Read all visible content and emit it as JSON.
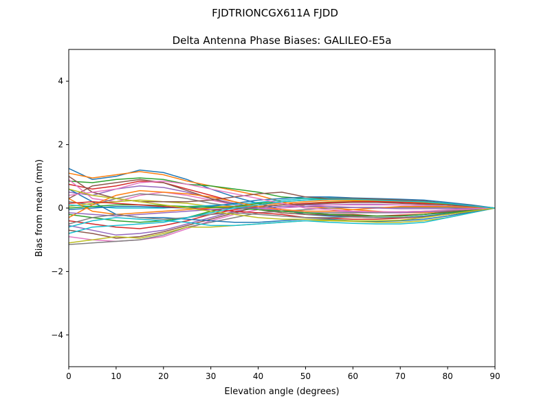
{
  "chart_data": {
    "type": "line",
    "suptitle": "FJDTRIONCGX611A FJDD",
    "title": "Delta Antenna Phase Biases: GALILEO-E5a",
    "xlabel": "Elevation angle (degrees)",
    "ylabel": "Bias from mean (mm)",
    "xlim": [
      0,
      90
    ],
    "ylim": [
      -5,
      5
    ],
    "xticks": [
      0,
      10,
      20,
      30,
      40,
      50,
      60,
      70,
      80,
      90
    ],
    "yticks": [
      -4,
      -2,
      0,
      2,
      4
    ],
    "ytick_labels": [
      "−4",
      "−2",
      "0",
      "2",
      "4"
    ],
    "grid": false,
    "legend": "none",
    "colors": [
      "#1f77b4",
      "#ff7f0e",
      "#2ca02c",
      "#d62728",
      "#9467bd",
      "#8c564b",
      "#e377c2",
      "#7f7f7f",
      "#bcbd22",
      "#17becf"
    ],
    "x": [
      0,
      5,
      10,
      15,
      20,
      25,
      30,
      35,
      40,
      45,
      50,
      55,
      60,
      65,
      70,
      75,
      80,
      85,
      90
    ],
    "series": [
      {
        "values": [
          1.25,
          0.9,
          1.0,
          1.2,
          1.12,
          0.9,
          0.6,
          0.35,
          0.15,
          -0.05,
          -0.2,
          -0.25,
          -0.28,
          -0.3,
          -0.3,
          -0.25,
          -0.18,
          -0.08,
          0
        ]
      },
      {
        "values": [
          1.1,
          0.95,
          1.05,
          1.15,
          1.05,
          0.85,
          0.7,
          0.55,
          0.4,
          0.2,
          0.05,
          0,
          -0.05,
          -0.1,
          -0.15,
          -0.15,
          -0.1,
          -0.05,
          0
        ]
      },
      {
        "values": [
          0.85,
          0.8,
          0.9,
          0.95,
          0.9,
          0.75,
          0.7,
          0.6,
          0.5,
          0.35,
          0.3,
          0.3,
          0.28,
          0.25,
          0.22,
          0.18,
          0.12,
          0.06,
          0
        ]
      },
      {
        "values": [
          0.75,
          0.6,
          0.7,
          0.85,
          0.8,
          0.6,
          0.4,
          0.2,
          0.05,
          -0.1,
          -0.15,
          -0.2,
          -0.2,
          -0.25,
          -0.22,
          -0.2,
          -0.12,
          -0.06,
          0
        ]
      },
      {
        "values": [
          0.5,
          0.4,
          0.6,
          0.7,
          0.65,
          0.5,
          0.3,
          0.15,
          0,
          -0.1,
          -0.1,
          -0.1,
          -0.12,
          -0.15,
          -0.15,
          -0.12,
          -0.1,
          -0.05,
          0
        ]
      },
      {
        "values": [
          0.3,
          0.7,
          0.8,
          0.9,
          0.8,
          0.55,
          0.3,
          0.1,
          -0.05,
          -0.15,
          -0.2,
          -0.22,
          -0.25,
          -0.25,
          -0.25,
          -0.2,
          -0.12,
          -0.06,
          0
        ]
      },
      {
        "values": [
          0.9,
          0.3,
          0.2,
          0.4,
          0.5,
          0.4,
          0.25,
          0.1,
          0,
          -0.05,
          -0.1,
          -0.1,
          -0.1,
          -0.12,
          -0.12,
          -0.1,
          -0.08,
          -0.04,
          0
        ]
      },
      {
        "values": [
          0.2,
          0.1,
          0.3,
          0.45,
          0.4,
          0.3,
          0.15,
          0.05,
          -0.05,
          -0.1,
          -0.15,
          -0.15,
          -0.15,
          -0.15,
          -0.12,
          -0.1,
          -0.08,
          -0.04,
          0
        ]
      },
      {
        "values": [
          0.05,
          0.15,
          0.2,
          0.25,
          0.2,
          0.15,
          0.05,
          0.05,
          0.05,
          0.1,
          0.15,
          0.2,
          0.22,
          0.22,
          0.2,
          0.18,
          0.12,
          0.06,
          0
        ]
      },
      {
        "values": [
          0.1,
          0.05,
          0,
          0,
          0,
          0.05,
          0.08,
          0.12,
          0.18,
          0.25,
          0.3,
          0.32,
          0.3,
          0.28,
          0.25,
          0.2,
          0.15,
          0.08,
          0
        ]
      },
      {
        "values": [
          -0.05,
          0,
          0.05,
          0.05,
          0.02,
          0,
          0.05,
          0.15,
          0.25,
          0.3,
          0.35,
          0.35,
          0.32,
          0.3,
          0.28,
          0.25,
          0.18,
          0.1,
          0
        ]
      },
      {
        "values": [
          0.3,
          -0.1,
          -0.2,
          -0.15,
          -0.1,
          -0.05,
          0,
          0.05,
          0.1,
          0.15,
          0.2,
          0.25,
          0.25,
          0.22,
          0.2,
          0.15,
          0.1,
          0.05,
          0
        ]
      },
      {
        "values": [
          -0.2,
          -0.3,
          -0.4,
          -0.45,
          -0.4,
          -0.3,
          -0.1,
          0.05,
          0.15,
          0.2,
          0.25,
          0.3,
          0.3,
          0.28,
          0.25,
          0.2,
          0.14,
          0.07,
          0
        ]
      },
      {
        "values": [
          -0.4,
          -0.5,
          -0.6,
          -0.65,
          -0.55,
          -0.4,
          -0.2,
          -0.05,
          0.05,
          0.1,
          0.15,
          0.18,
          0.2,
          0.2,
          0.18,
          0.15,
          0.1,
          0.05,
          0
        ]
      },
      {
        "values": [
          -0.55,
          -0.7,
          -0.85,
          -0.8,
          -0.7,
          -0.5,
          -0.3,
          -0.1,
          0,
          0.05,
          0.1,
          0.1,
          0.12,
          0.12,
          0.1,
          0.08,
          0.06,
          0.03,
          0
        ]
      },
      {
        "values": [
          -0.7,
          -0.8,
          -0.95,
          -0.9,
          -0.75,
          -0.55,
          -0.35,
          -0.15,
          0.05,
          0.1,
          0.12,
          0.15,
          0.18,
          0.18,
          0.15,
          0.12,
          0.1,
          0.05,
          0
        ]
      },
      {
        "values": [
          -0.9,
          -1.0,
          -1.05,
          -1.0,
          -0.9,
          -0.65,
          -0.4,
          -0.2,
          -0.05,
          0,
          0.05,
          0.1,
          0.1,
          0.1,
          0.1,
          0.08,
          0.05,
          0.02,
          0
        ]
      },
      {
        "values": [
          -1.15,
          -1.1,
          -1.05,
          -1.0,
          -0.85,
          -0.6,
          -0.45,
          -0.3,
          -0.15,
          -0.1,
          -0.05,
          0,
          0.02,
          0.02,
          0.02,
          0.02,
          0.02,
          0.01,
          0
        ]
      },
      {
        "values": [
          -1.1,
          -1.0,
          -0.9,
          -0.95,
          -0.8,
          -0.6,
          -0.6,
          -0.55,
          -0.5,
          -0.45,
          -0.4,
          -0.4,
          -0.42,
          -0.45,
          -0.45,
          -0.4,
          -0.3,
          -0.15,
          0
        ]
      },
      {
        "values": [
          -0.6,
          -0.4,
          -0.3,
          -0.35,
          -0.4,
          -0.45,
          -0.55,
          -0.55,
          -0.5,
          -0.45,
          -0.4,
          -0.45,
          -0.48,
          -0.5,
          -0.5,
          -0.45,
          -0.3,
          -0.15,
          0
        ]
      },
      {
        "values": [
          0.6,
          0.2,
          -0.2,
          -0.3,
          -0.3,
          -0.35,
          -0.4,
          -0.45,
          -0.45,
          -0.4,
          -0.35,
          -0.35,
          -0.4,
          -0.42,
          -0.4,
          -0.35,
          -0.25,
          -0.12,
          0
        ]
      },
      {
        "values": [
          -0.3,
          0.1,
          0.4,
          0.55,
          0.5,
          0.45,
          0.35,
          0.2,
          0.05,
          -0.05,
          -0.1,
          -0.1,
          -0.05,
          0,
          0.05,
          0.05,
          0.05,
          0.02,
          0
        ]
      },
      {
        "values": [
          0,
          0.05,
          0.1,
          0.1,
          0.08,
          0.05,
          0.02,
          0,
          -0.05,
          -0.1,
          -0.15,
          -0.2,
          -0.22,
          -0.25,
          -0.25,
          -0.2,
          -0.15,
          -0.08,
          0
        ]
      },
      {
        "values": [
          0.15,
          0.2,
          0.15,
          0.1,
          0.05,
          0,
          -0.05,
          -0.1,
          -0.15,
          -0.2,
          -0.3,
          -0.32,
          -0.35,
          -0.35,
          -0.32,
          -0.28,
          -0.2,
          -0.1,
          0
        ]
      },
      {
        "values": [
          -0.15,
          -0.2,
          -0.25,
          -0.2,
          -0.15,
          -0.1,
          -0.05,
          0,
          0,
          0.05,
          0.05,
          0.05,
          0.02,
          0,
          -0.02,
          -0.02,
          -0.02,
          -0.01,
          0
        ]
      },
      {
        "values": [
          1.0,
          0.5,
          0.3,
          0.2,
          0.2,
          0.2,
          0.25,
          0.35,
          0.45,
          0.5,
          0.35,
          0.3,
          0.3,
          0.28,
          0.25,
          0.22,
          0.15,
          0.08,
          0
        ]
      },
      {
        "values": [
          0.4,
          0.5,
          0.6,
          0.8,
          0.85,
          0.75,
          0.6,
          0.45,
          0.3,
          0.15,
          0,
          -0.05,
          -0.1,
          -0.12,
          -0.12,
          -0.1,
          -0.06,
          -0.03,
          0
        ]
      },
      {
        "values": [
          -0.5,
          -0.3,
          -0.2,
          -0.3,
          -0.35,
          -0.3,
          -0.2,
          -0.15,
          -0.2,
          -0.25,
          -0.3,
          -0.3,
          -0.28,
          -0.3,
          -0.3,
          -0.28,
          -0.2,
          -0.1,
          0
        ]
      },
      {
        "values": [
          0.6,
          0.4,
          0.3,
          0.2,
          0.1,
          0,
          -0.1,
          -0.2,
          -0.3,
          -0.35,
          -0.35,
          -0.38,
          -0.4,
          -0.4,
          -0.38,
          -0.3,
          -0.2,
          -0.1,
          0
        ]
      },
      {
        "values": [
          -0.8,
          -0.6,
          -0.55,
          -0.5,
          -0.45,
          -0.3,
          -0.15,
          0,
          0.1,
          0.2,
          0.25,
          0.28,
          0.28,
          0.25,
          0.22,
          0.2,
          0.15,
          0.07,
          0
        ]
      }
    ]
  }
}
